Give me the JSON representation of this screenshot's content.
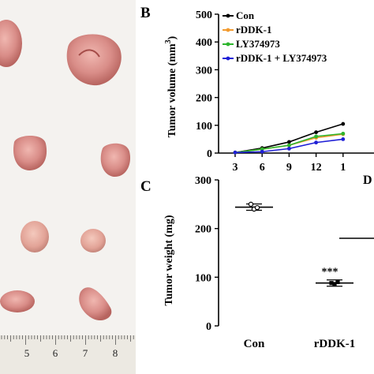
{
  "panel_labels": {
    "b": "B",
    "c": "C"
  },
  "ruler": {
    "numbers": [
      "5",
      "6",
      "7",
      "8"
    ]
  },
  "colors": {
    "con": "#000000",
    "rddk1": "#f29a2e",
    "ly": "#2db52d",
    "combo": "#1f1fd6",
    "bench": "#f4f2ef",
    "tumor": "#d98d88"
  },
  "chart_data": [
    {
      "type": "line",
      "panel": "B",
      "ylabel": "Tumor volume (mm3)",
      "ylabel_main": "Tumor volume (mm",
      "ylabel_sup": "3",
      "ylabel_close": ")",
      "xlabel_fragment": "D",
      "ylim": [
        0,
        500
      ],
      "yticks": [
        "0",
        "100",
        "200",
        "300",
        "400",
        "500"
      ],
      "x_tick_labels": [
        "3",
        "6",
        "9",
        "12",
        "1"
      ],
      "x": [
        3,
        6,
        9,
        12,
        15
      ],
      "series": [
        {
          "name": "Con",
          "values": [
            2,
            18,
            40,
            75,
            105
          ]
        },
        {
          "name": "rDDK-1",
          "values": [
            2,
            14,
            28,
            55,
            68
          ]
        },
        {
          "name": "LY374973",
          "values": [
            2,
            14,
            28,
            60,
            70
          ]
        },
        {
          "name": "rDDK-1 + LY374973",
          "values": [
            2,
            5,
            16,
            38,
            50
          ]
        }
      ],
      "legend": "top-left"
    },
    {
      "type": "scatter",
      "panel": "C",
      "ylabel": "Tumor weight (mg)",
      "ylim": [
        0,
        300
      ],
      "yticks": [
        "0",
        "100",
        "200",
        "300"
      ],
      "categories": [
        "Con",
        "rDDK-1"
      ],
      "groups": [
        {
          "category": "Con",
          "mean": 244,
          "points": [
            250,
            240,
            243
          ]
        },
        {
          "category": "rDDK-1",
          "mean": 88,
          "points": [
            88,
            86,
            90
          ],
          "annotation": "***"
        }
      ],
      "partial_line_value": 180
    }
  ]
}
